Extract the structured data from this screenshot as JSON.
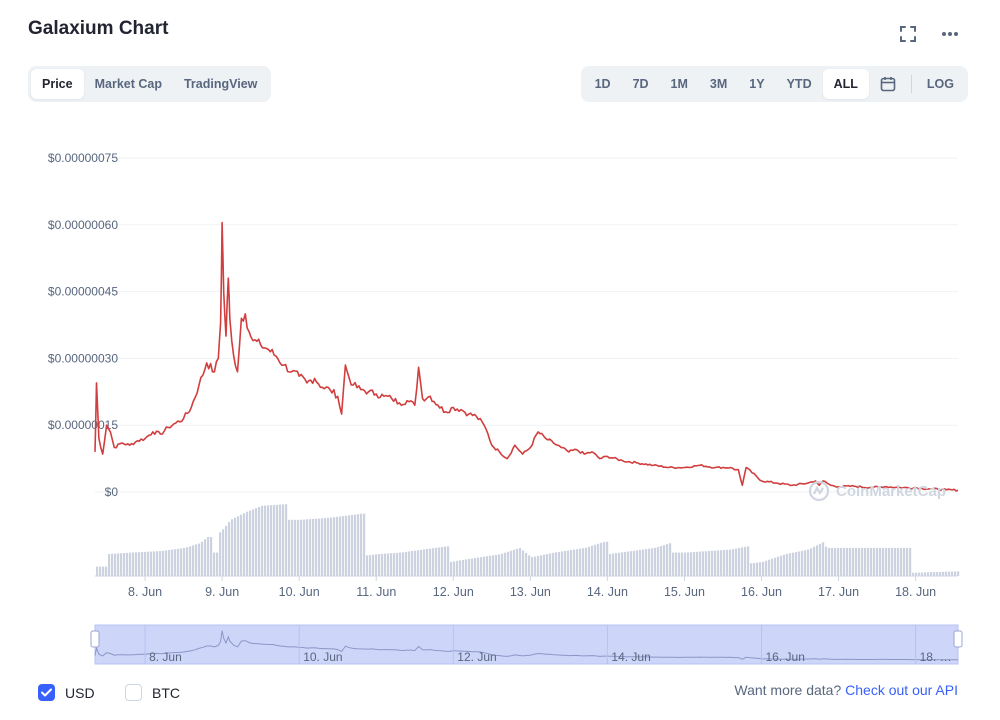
{
  "header": {
    "title": "Galaxium Chart"
  },
  "icons": {
    "fullscreen": "fullscreen-icon",
    "more": "more-icon",
    "calendar": "calendar-icon",
    "checkmark": "checkmark-icon",
    "watermark_logo": "coinmarketcap-logo-icon"
  },
  "view_tabs": [
    {
      "label": "Price",
      "active": true
    },
    {
      "label": "Market Cap",
      "active": false
    },
    {
      "label": "TradingView",
      "active": false
    }
  ],
  "range_tabs": [
    {
      "label": "1D",
      "active": false
    },
    {
      "label": "7D",
      "active": false
    },
    {
      "label": "1M",
      "active": false
    },
    {
      "label": "3M",
      "active": false
    },
    {
      "label": "1Y",
      "active": false
    },
    {
      "label": "YTD",
      "active": false
    },
    {
      "label": "ALL",
      "active": true
    }
  ],
  "log_label": "LOG",
  "watermark": "CoinMarketCap",
  "colors": {
    "line": "#d13e3e",
    "volume": "#ccd2df",
    "navigator_fill": "#cdd5f9",
    "accent": "#3861fb"
  },
  "chart_data": {
    "type": "line",
    "y_tick_labels": [
      "$0",
      "$0.00000015",
      "$0.00000030",
      "$0.00000045",
      "$0.00000060",
      "$0.00000075"
    ],
    "y_ticks": [
      0,
      1.5e-07,
      3e-07,
      4.5e-07,
      6e-07,
      7.5e-07
    ],
    "ylim": [
      0,
      7.5e-07
    ],
    "x_tick_labels": [
      "8. Jun",
      "9. Jun",
      "10. Jun",
      "11. Jun",
      "12. Jun",
      "13. Jun",
      "14. Jun",
      "15. Jun",
      "16. Jun",
      "17. Jun",
      "18. Jun"
    ],
    "x_ticks": [
      8,
      9,
      10,
      11,
      12,
      13,
      14,
      15,
      16,
      17,
      18
    ],
    "xlim": [
      7.35,
      18.55
    ],
    "navigator_tick_labels": [
      "8. Jun",
      "10. Jun",
      "12. Jun",
      "14. Jun",
      "16. Jun",
      "18. …"
    ],
    "navigator_ticks": [
      8,
      10,
      12,
      14,
      16,
      18
    ],
    "series": [
      {
        "x": [
          7.35,
          7.37,
          7.4,
          7.45,
          7.5,
          7.55,
          7.6,
          7.7,
          7.8,
          7.9,
          8.0,
          8.1,
          8.2,
          8.3,
          8.4,
          8.5,
          8.6,
          8.7,
          8.8,
          8.9,
          8.95,
          8.98,
          9.0,
          9.02,
          9.05,
          9.08,
          9.1,
          9.15,
          9.2,
          9.25,
          9.3,
          9.35,
          9.4,
          9.5,
          9.6,
          9.7,
          9.8,
          9.9,
          10.0,
          10.1,
          10.2,
          10.3,
          10.4,
          10.5,
          10.55,
          10.6,
          10.65,
          10.7,
          10.8,
          10.9,
          11.0,
          11.1,
          11.2,
          11.3,
          11.4,
          11.5,
          11.55,
          11.6,
          11.7,
          11.8,
          11.9,
          12.0,
          12.1,
          12.2,
          12.3,
          12.4,
          12.45,
          12.5,
          12.6,
          12.7,
          12.8,
          12.9,
          13.0,
          13.1,
          13.2,
          13.3,
          13.4,
          13.5,
          13.6,
          13.7,
          13.8,
          13.9,
          14.0,
          14.2,
          14.4,
          14.6,
          14.8,
          15.0,
          15.2,
          15.4,
          15.6,
          15.65,
          15.7,
          15.75,
          15.8,
          16.0,
          16.2,
          16.4,
          16.6,
          16.7,
          16.75,
          16.8,
          16.9,
          17.0,
          17.2,
          17.4,
          17.6,
          17.8,
          18.0,
          18.2,
          18.4,
          18.55
        ],
        "y": [
          9e-08,
          2.45e-07,
          1.2e-07,
          8.5e-08,
          1.5e-07,
          1.35e-07,
          1e-07,
          1.1e-07,
          1.05e-07,
          1.15e-07,
          1.2e-07,
          1.35e-07,
          1.3e-07,
          1.45e-07,
          1.55e-07,
          1.65e-07,
          1.9e-07,
          2.4e-07,
          2.9e-07,
          2.7e-07,
          3e-07,
          3.8e-07,
          6.05e-07,
          4.5e-07,
          3.5e-07,
          4.8e-07,
          3.9e-07,
          3.05e-07,
          2.7e-07,
          3.9e-07,
          4e-07,
          3.6e-07,
          3.4e-07,
          3.3e-07,
          3.2e-07,
          3.05e-07,
          2.85e-07,
          2.7e-07,
          2.6e-07,
          2.45e-07,
          2.55e-07,
          2.35e-07,
          2.3e-07,
          2.15e-07,
          1.75e-07,
          2.85e-07,
          2.55e-07,
          2.4e-07,
          2.3e-07,
          2.25e-07,
          2.2e-07,
          2.15e-07,
          2.1e-07,
          2e-07,
          2.05e-07,
          1.95e-07,
          2.8e-07,
          2.1e-07,
          2.15e-07,
          1.95e-07,
          1.8e-07,
          1.9e-07,
          1.85e-07,
          1.75e-07,
          1.7e-07,
          1.5e-07,
          1.3e-07,
          1.05e-07,
          9e-08,
          7.5e-08,
          1.05e-07,
          8.5e-08,
          1e-07,
          1.35e-07,
          1.2e-07,
          1.1e-07,
          1e-07,
          9e-08,
          9.5e-08,
          8.5e-08,
          9e-08,
          7.5e-08,
          8e-08,
          7e-08,
          6.5e-08,
          6e-08,
          5.5e-08,
          5.5e-08,
          6e-08,
          5.5e-08,
          5.5e-08,
          5e-08,
          5e-08,
          1.5e-08,
          5.5e-08,
          2.5e-08,
          2e-08,
          1.5e-08,
          2e-08,
          2.5e-08,
          1.5e-08,
          2.5e-08,
          1.5e-08,
          1.2e-08,
          1.3e-08,
          1e-08,
          1.2e-08,
          1e-08,
          9e-09,
          7e-09,
          5e-09,
          4e-09
        ]
      }
    ],
    "volume": {
      "x": [
        7.35,
        7.5,
        7.8,
        8.2,
        8.5,
        8.7,
        8.8,
        8.85,
        8.95,
        9.0,
        9.1,
        9.3,
        9.5,
        9.8,
        9.83,
        10.0,
        10.3,
        10.5,
        10.8,
        10.83,
        11.0,
        11.3,
        11.6,
        11.9,
        11.95,
        12.2,
        12.6,
        12.85,
        13.0,
        13.3,
        13.7,
        13.95,
        14.0,
        14.3,
        14.6,
        14.8,
        14.83,
        15.0,
        15.3,
        15.6,
        15.8,
        15.83,
        16.0,
        16.3,
        16.6,
        16.8,
        16.83,
        17.0,
        17.3,
        17.6,
        17.9,
        17.92,
        18.2,
        18.55
      ],
      "y": [
        0.12,
        0.28,
        0.3,
        0.32,
        0.36,
        0.42,
        0.5,
        0.3,
        0.55,
        0.6,
        0.72,
        0.82,
        0.9,
        0.92,
        0.72,
        0.72,
        0.74,
        0.76,
        0.8,
        0.26,
        0.28,
        0.3,
        0.34,
        0.38,
        0.18,
        0.22,
        0.28,
        0.36,
        0.24,
        0.3,
        0.36,
        0.44,
        0.28,
        0.32,
        0.36,
        0.42,
        0.3,
        0.3,
        0.32,
        0.34,
        0.38,
        0.16,
        0.18,
        0.28,
        0.34,
        0.44,
        0.36,
        0.36,
        0.36,
        0.36,
        0.36,
        0.04,
        0.05,
        0.06
      ]
    }
  },
  "footer": {
    "usd_label": "USD",
    "btc_label": "BTC",
    "api_text": "Want more data?",
    "api_link": "Check out our API"
  }
}
